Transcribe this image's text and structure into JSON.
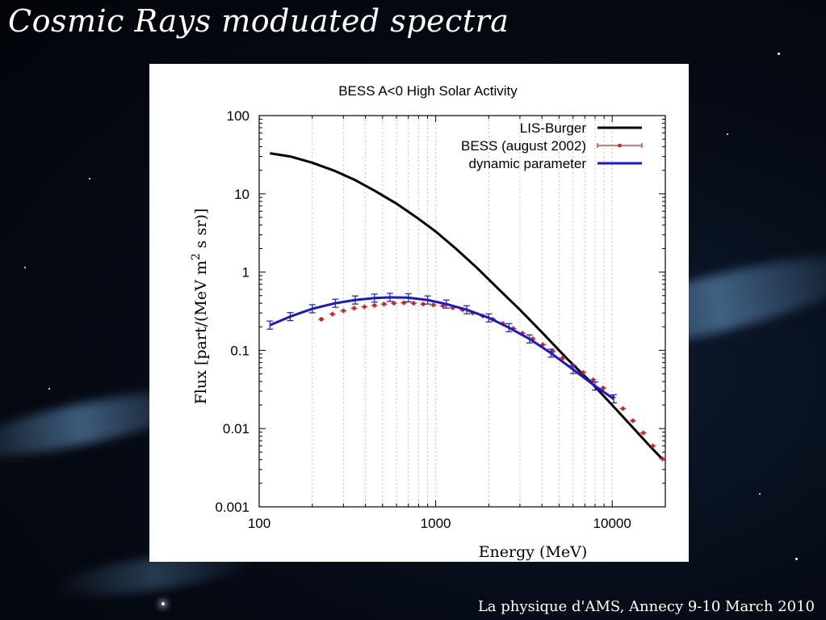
{
  "slide": {
    "title": "Cosmic Rays moduated spectra",
    "footer": "La physique d'AMS, Annecy 9-10 March 2010"
  },
  "chart_data": {
    "type": "line",
    "title": "BESS A<0 High Solar Activity",
    "xlabel": "Energy (MeV)",
    "ylabel": "Flux [part/(MeV m^2 s sr)]",
    "xscale": "log",
    "yscale": "log",
    "xlim": [
      100,
      20000
    ],
    "ylim": [
      0.001,
      100
    ],
    "x_ticks": [
      "100",
      "1000",
      "10000"
    ],
    "y_ticks": [
      "0.001",
      "0.01",
      "0.1",
      "1",
      "10",
      "100"
    ],
    "grid": "vertical minor lines",
    "legend_position": "top-right",
    "colors": {
      "lis": "#000000",
      "bess": "#cc2222",
      "dynamic": "#1a1acc"
    },
    "series": [
      {
        "name": "LIS-Burger",
        "style": "line",
        "x": [
          115,
          150,
          200,
          270,
          350,
          450,
          600,
          800,
          1000,
          1300,
          1700,
          2200,
          3000,
          4000,
          5500,
          7500,
          10000,
          13000,
          16000,
          19000
        ],
        "y": [
          33,
          30,
          25,
          19.5,
          15,
          11,
          7.5,
          4.8,
          3.3,
          2.0,
          1.15,
          0.65,
          0.33,
          0.17,
          0.08,
          0.04,
          0.02,
          0.0105,
          0.0063,
          0.0042
        ]
      },
      {
        "name": "BESS (august 2002)",
        "style": "points-errorbars",
        "x": [
          225,
          260,
          300,
          345,
          395,
          450,
          510,
          580,
          660,
          750,
          850,
          970,
          1100,
          1250,
          1420,
          1620,
          1850,
          2100,
          2400,
          2750,
          3100,
          3550,
          4050,
          4600,
          5250,
          6000,
          6850,
          7800,
          8900,
          10100,
          11500,
          13100,
          15000,
          17000,
          19300
        ],
        "y": [
          0.25,
          0.29,
          0.32,
          0.345,
          0.36,
          0.375,
          0.39,
          0.4,
          0.405,
          0.4,
          0.39,
          0.38,
          0.37,
          0.35,
          0.33,
          0.3,
          0.275,
          0.25,
          0.22,
          0.19,
          0.165,
          0.14,
          0.118,
          0.097,
          0.08,
          0.064,
          0.052,
          0.042,
          0.033,
          0.025,
          0.018,
          0.0126,
          0.0088,
          0.006,
          0.0041
        ]
      },
      {
        "name": "dynamic parameter",
        "style": "line",
        "x": [
          115,
          150,
          200,
          270,
          350,
          450,
          550,
          700,
          900,
          1150,
          1500,
          2000,
          2600,
          3400,
          4500,
          6000,
          8000,
          10200
        ],
        "y": [
          0.21,
          0.27,
          0.34,
          0.4,
          0.44,
          0.465,
          0.475,
          0.47,
          0.44,
          0.39,
          0.33,
          0.26,
          0.195,
          0.14,
          0.092,
          0.057,
          0.035,
          0.024
        ]
      }
    ]
  }
}
